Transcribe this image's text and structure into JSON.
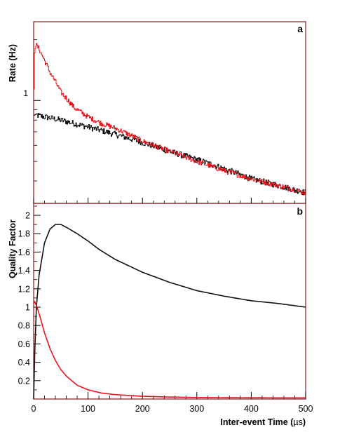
{
  "chart_data": [
    {
      "panel": "a",
      "type": "line",
      "title": "",
      "ylabel": "Rate (Hz)",
      "xlabel": "",
      "xlim": [
        0,
        500
      ],
      "ylim": [
        0.31,
        2.45
      ],
      "yscale": "log",
      "yticks_labeled": [
        {
          "value": 1,
          "label": "1"
        }
      ],
      "grid": false,
      "colors": {
        "red": "#e8141b",
        "black": "#111111"
      },
      "series": [
        {
          "color": "red",
          "x": [
            0,
            2,
            5,
            10,
            20,
            30,
            50,
            75,
            100,
            125,
            150,
            200,
            250,
            300,
            350,
            400,
            450,
            500
          ],
          "values": [
            0.84,
            1.78,
            1.88,
            1.8,
            1.58,
            1.38,
            1.1,
            0.92,
            0.83,
            0.77,
            0.73,
            0.63,
            0.56,
            0.5,
            0.45,
            0.41,
            0.38,
            0.35
          ]
        },
        {
          "color": "black",
          "x": [
            0,
            2,
            5,
            10,
            50,
            100,
            150,
            200,
            250,
            300,
            350,
            400,
            450,
            500
          ],
          "values": [
            0.84,
            0.85,
            0.85,
            0.84,
            0.8,
            0.74,
            0.68,
            0.62,
            0.56,
            0.51,
            0.46,
            0.41,
            0.38,
            0.35
          ]
        }
      ]
    },
    {
      "panel": "b",
      "type": "line",
      "title": "",
      "ylabel": "Quality Factor",
      "xlabel": "Inter-event Time (µs)",
      "xlim": [
        0,
        500
      ],
      "ylim": [
        0,
        2.13
      ],
      "yscale": "linear",
      "xticks": [
        0,
        100,
        200,
        300,
        400,
        500
      ],
      "yticks": [
        0.2,
        0.4,
        0.6,
        0.8,
        1,
        1.2,
        1.4,
        1.6,
        1.8,
        2
      ],
      "grid": false,
      "colors": {
        "red": "#e8141b",
        "black": "#111111"
      },
      "series": [
        {
          "color": "black",
          "x": [
            0,
            2,
            5,
            10,
            20,
            30,
            40,
            50,
            60,
            80,
            100,
            120,
            150,
            200,
            250,
            300,
            350,
            400,
            450,
            500
          ],
          "values": [
            0,
            0.5,
            1.0,
            1.35,
            1.7,
            1.85,
            1.9,
            1.9,
            1.87,
            1.8,
            1.72,
            1.63,
            1.52,
            1.38,
            1.27,
            1.18,
            1.12,
            1.07,
            1.04,
            1.0
          ]
        },
        {
          "color": "red",
          "x": [
            0,
            2,
            5,
            10,
            20,
            30,
            40,
            50,
            60,
            80,
            100,
            125,
            150,
            200,
            250,
            300,
            350,
            400,
            450,
            500
          ],
          "values": [
            1.04,
            1.06,
            1.02,
            0.93,
            0.72,
            0.55,
            0.42,
            0.32,
            0.25,
            0.15,
            0.1,
            0.065,
            0.048,
            0.03,
            0.022,
            0.017,
            0.015,
            0.014,
            0.013,
            0.013
          ]
        }
      ]
    }
  ],
  "labels": {
    "panel_a": "a",
    "panel_b": "b",
    "ylabel_a": "Rate (Hz)",
    "ylabel_b": "Quality Factor",
    "xlabel_prefix": "Inter-event Time (",
    "xlabel_unit": "µs",
    "xlabel_suffix": ")",
    "ytick_a_1": "1"
  }
}
